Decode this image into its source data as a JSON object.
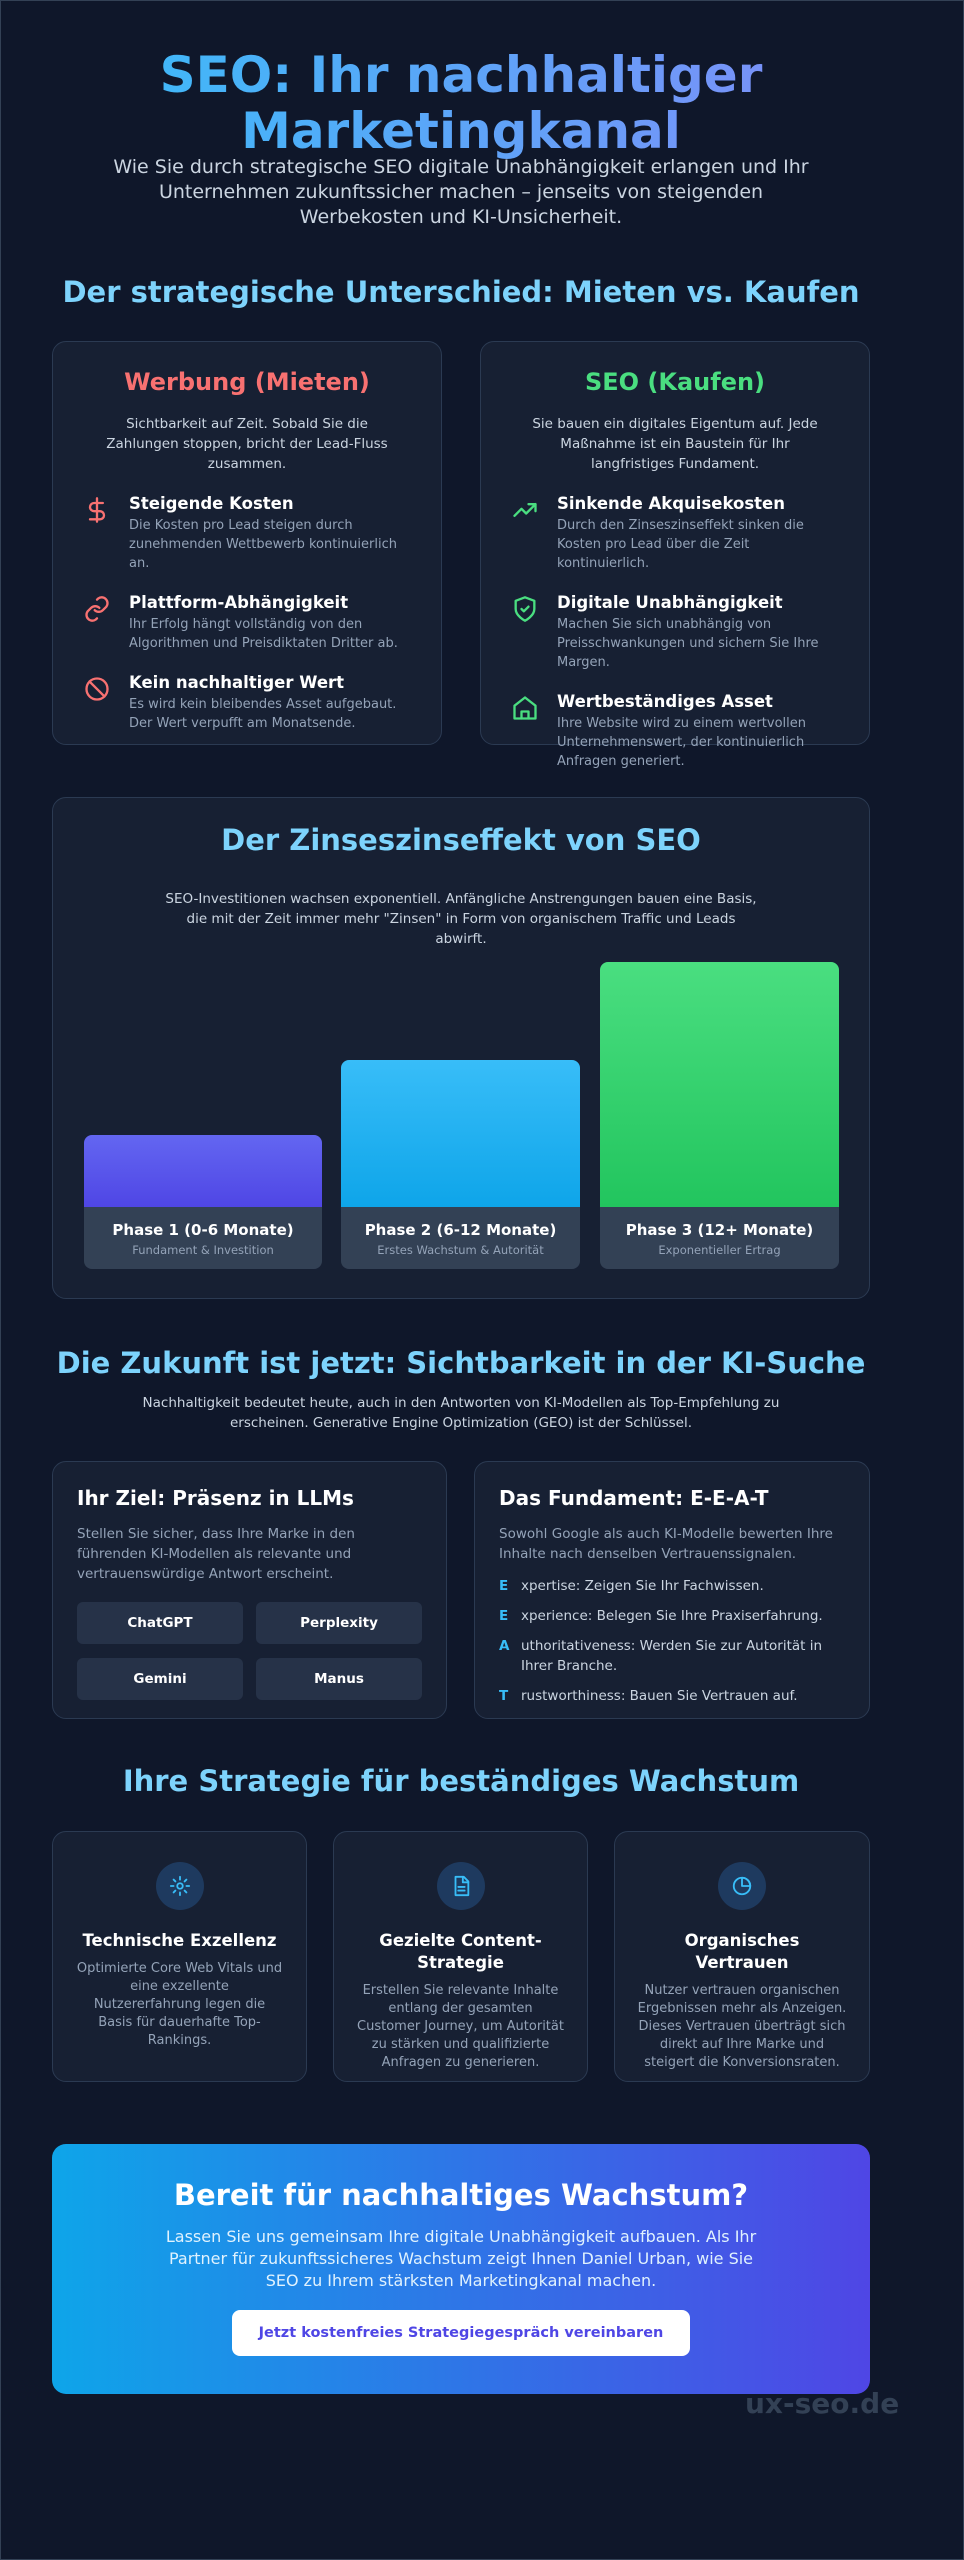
{
  "header": {
    "title": "SEO: Ihr nachhaltiger Marketingkanal",
    "subtitle": "Wie Sie durch strategische SEO digitale Unabhängigkeit erlangen und Ihr Unternehmen zukunftssicher machen – jenseits von steigenden Werbekosten und KI-Unsicherheit."
  },
  "comparison": {
    "title": "Der strategische Unterschied: Mieten vs. Kaufen",
    "cards": [
      {
        "title": "Werbung (Mieten)",
        "intro": "Sichtbarkeit auf Zeit. Sobald Sie die Zahlungen stoppen, bricht der Lead-Fluss zusammen.",
        "items": [
          {
            "title": "Steigende Kosten",
            "text": "Die Kosten pro Lead steigen durch zunehmenden Wettbewerb kontinuierlich an."
          },
          {
            "title": "Plattform-Abhängigkeit",
            "text": "Ihr Erfolg hängt vollständig von den Algorithmen und Preisdiktaten Dritter ab."
          },
          {
            "title": "Kein nachhaltiger Wert",
            "text": "Es wird kein bleibendes Asset aufgebaut. Der Wert verpufft am Monatsende."
          }
        ]
      },
      {
        "title": "SEO (Kaufen)",
        "intro": "Sie bauen ein digitales Eigentum auf. Jede Maßnahme ist ein Baustein für Ihr langfristiges Fundament.",
        "items": [
          {
            "title": "Sinkende Akquisekosten",
            "text": "Durch den Zinseszinseffekt sinken die Kosten pro Lead über die Zeit kontinuierlich."
          },
          {
            "title": "Digitale Unabhängigkeit",
            "text": "Machen Sie sich unabhängig von Preisschwankungen und sichern Sie Ihre Margen."
          },
          {
            "title": "Wertbeständiges Asset",
            "text": "Ihre Website wird zu einem wertvollen Unternehmenswert, der kontinuierlich Anfragen generiert."
          }
        ]
      }
    ]
  },
  "compound": {
    "title": "Der Zinseszinseffekt von SEO",
    "text": "SEO-Investitionen wachsen exponentiell. Anfängliche Anstrengungen bauen eine Basis, die mit der Zeit immer mehr \"Zinsen\" in Form von organischem Traffic und Leads abwirft.",
    "phases": [
      {
        "title": "Phase 1 (0-6 Monate)",
        "subtitle": "Fundament & Investition"
      },
      {
        "title": "Phase 2 (6-12 Monate)",
        "subtitle": "Erstes Wachstum & Autorität"
      },
      {
        "title": "Phase 3 (12+ Monate)",
        "subtitle": "Exponentieller Ertrag"
      }
    ]
  },
  "ai": {
    "title": "Die Zukunft ist jetzt: Sichtbarkeit in der KI-Suche",
    "text": "Nachhaltigkeit bedeutet heute, auch in den Antworten von KI-Modellen als Top-Empfehlung zu erscheinen. Generative Engine Optimization (GEO) ist der Schlüssel.",
    "goal": {
      "title": "Ihr Ziel: Präsenz in LLMs",
      "text": "Stellen Sie sicher, dass Ihre Marke in den führenden KI-Modellen als relevante und vertrauenswürdige Antwort erscheint.",
      "llms": [
        "ChatGPT",
        "Perplexity",
        "Gemini",
        "Manus"
      ]
    },
    "eeat": {
      "title": "Das Fundament: E-E-A-T",
      "text": "Sowohl Google als auch KI-Modelle bewerten Ihre Inhalte nach denselben Vertrauenssignalen.",
      "items": [
        {
          "letter": "E",
          "text": "xpertise: Zeigen Sie Ihr Fachwissen."
        },
        {
          "letter": "E",
          "text": "xperience: Belegen Sie Ihre Praxiserfahrung."
        },
        {
          "letter": "A",
          "text": "uthoritativeness: Werden Sie zur Autorität in Ihrer Branche."
        },
        {
          "letter": "T",
          "text": "rustworthiness: Bauen Sie Vertrauen auf."
        }
      ]
    }
  },
  "strategy": {
    "title": "Ihre Strategie für beständiges Wachstum",
    "cards": [
      {
        "title": "Technische Exzellenz",
        "text": "Optimierte Core Web Vitals und eine exzellente Nutzererfahrung legen die Basis für dauerhafte Top-Rankings."
      },
      {
        "title": "Gezielte Content-Strategie",
        "text": "Erstellen Sie relevante Inhalte entlang der gesamten Customer Journey, um Autorität zu stärken und qualifizierte Anfragen zu generieren."
      },
      {
        "title": "Organisches Vertrauen",
        "text": "Nutzer vertrauen organischen Ergebnissen mehr als Anzeigen. Dieses Vertrauen überträgt sich direkt auf Ihre Marke und steigert die Konversionsraten."
      }
    ]
  },
  "cta": {
    "title": "Bereit für nachhaltiges Wachstum?",
    "text": "Lassen Sie uns gemeinsam Ihre digitale Unabhängigkeit aufbauen. Als Ihr Partner für zukunftssicheres Wachstum zeigt Ihnen Daniel Urban, wie Sie SEO zu Ihrem stärksten Marketingkanal machen.",
    "button": "Jetzt kostenfreies Strategiegespräch vereinbaren"
  },
  "watermark": "ux-seo.de"
}
